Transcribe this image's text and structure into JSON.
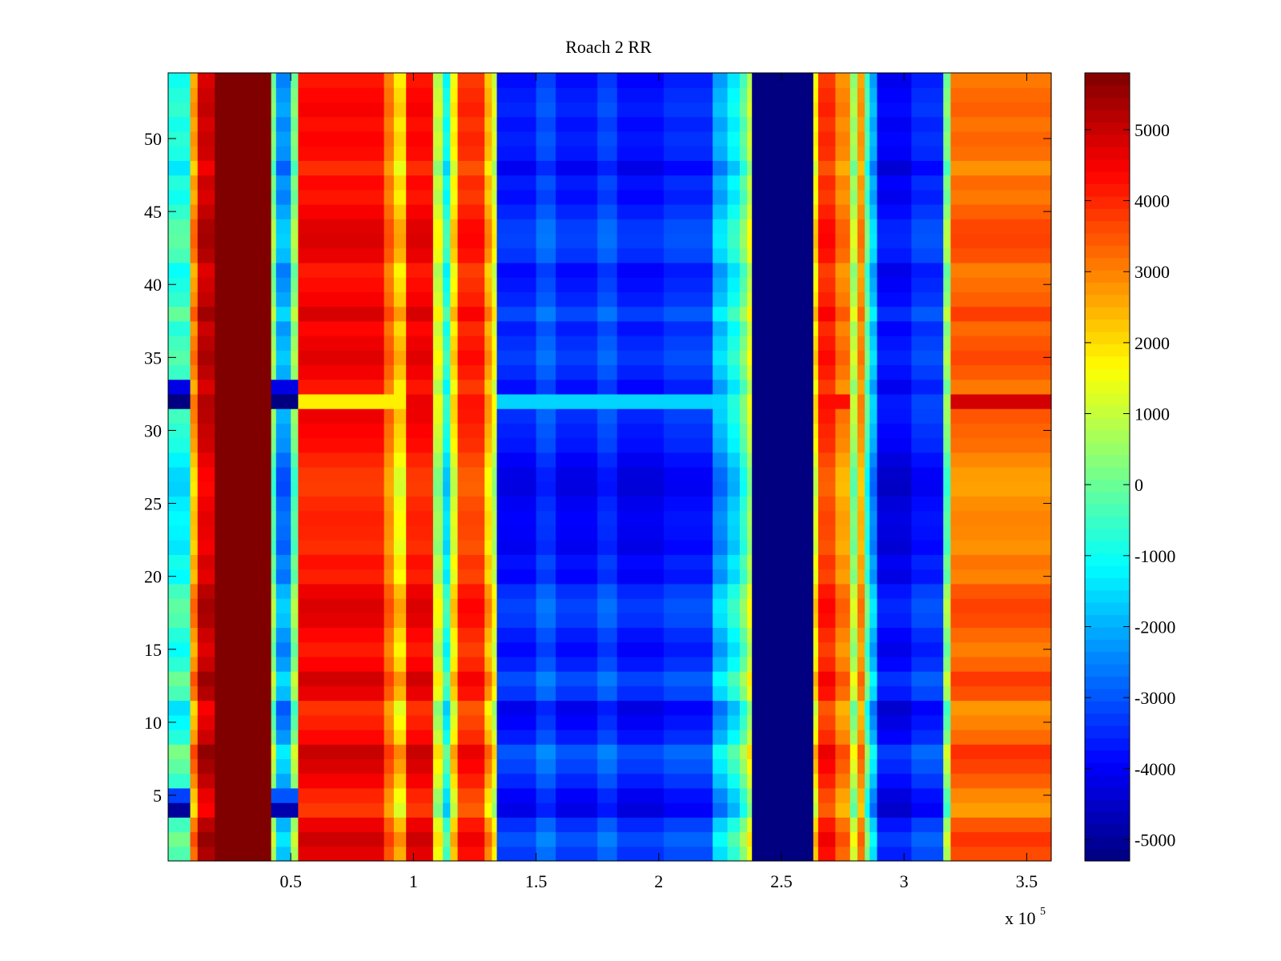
{
  "chart_data": {
    "type": "heatmap",
    "title": "Roach 2 RR",
    "xlabel": "",
    "ylabel": "",
    "x_multiplier_label": {
      "prefix": "x 10",
      "exponent": "5"
    },
    "xlim": [
      0,
      3.6
    ],
    "ylim": [
      0.5,
      54.5
    ],
    "x_ticks": [
      0.5,
      1,
      1.5,
      2,
      2.5,
      3,
      3.5
    ],
    "x_tick_labels": [
      "0.5",
      "1",
      "1.5",
      "2",
      "2.5",
      "3",
      "3.5"
    ],
    "y_ticks": [
      5,
      10,
      15,
      20,
      25,
      30,
      35,
      40,
      45,
      50
    ],
    "y_tick_labels": [
      "5",
      "10",
      "15",
      "20",
      "25",
      "30",
      "35",
      "40",
      "45",
      "50"
    ],
    "n_rows": 54,
    "color_range": [
      -5300,
      5800
    ],
    "colormap": "jet",
    "colorbar": {
      "ticks": [
        5000,
        4000,
        3000,
        2000,
        1000,
        0,
        -1000,
        -2000,
        -3000,
        -4000,
        -5000
      ],
      "tick_labels": [
        "5000",
        "4000",
        "3000",
        "2000",
        "1000",
        "0",
        "-1000",
        "-2000",
        "-3000",
        "-4000",
        "-5000"
      ]
    },
    "column_bands": [
      {
        "x_start": 0.0,
        "x_end": 0.09,
        "value": -1000
      },
      {
        "x_start": 0.09,
        "x_end": 0.12,
        "value": 2500
      },
      {
        "x_start": 0.12,
        "x_end": 0.19,
        "value": 4800
      },
      {
        "x_start": 0.19,
        "x_end": 0.42,
        "value": 5800
      },
      {
        "x_start": 0.42,
        "x_end": 0.44,
        "value": 0
      },
      {
        "x_start": 0.44,
        "x_end": 0.5,
        "value": -2500
      },
      {
        "x_start": 0.5,
        "x_end": 0.53,
        "value": 0
      },
      {
        "x_start": 0.53,
        "x_end": 0.88,
        "value": 4200
      },
      {
        "x_start": 0.88,
        "x_end": 0.92,
        "value": 3000
      },
      {
        "x_start": 0.92,
        "x_end": 0.97,
        "value": 1800
      },
      {
        "x_start": 0.97,
        "x_end": 1.08,
        "value": 4200
      },
      {
        "x_start": 1.08,
        "x_end": 1.12,
        "value": 800
      },
      {
        "x_start": 1.12,
        "x_end": 1.15,
        "value": -1200
      },
      {
        "x_start": 1.15,
        "x_end": 1.18,
        "value": 1500
      },
      {
        "x_start": 1.18,
        "x_end": 1.29,
        "value": 3800
      },
      {
        "x_start": 1.29,
        "x_end": 1.32,
        "value": 2200
      },
      {
        "x_start": 1.32,
        "x_end": 1.34,
        "value": 1000
      },
      {
        "x_start": 1.34,
        "x_end": 1.5,
        "value": -3800
      },
      {
        "x_start": 1.5,
        "x_end": 1.58,
        "value": -3200
      },
      {
        "x_start": 1.58,
        "x_end": 1.75,
        "value": -3800
      },
      {
        "x_start": 1.75,
        "x_end": 1.83,
        "value": -3300
      },
      {
        "x_start": 1.83,
        "x_end": 2.02,
        "value": -3900
      },
      {
        "x_start": 2.02,
        "x_end": 2.22,
        "value": -3600
      },
      {
        "x_start": 2.22,
        "x_end": 2.28,
        "value": -2200
      },
      {
        "x_start": 2.28,
        "x_end": 2.33,
        "value": -1400
      },
      {
        "x_start": 2.33,
        "x_end": 2.36,
        "value": -400
      },
      {
        "x_start": 2.36,
        "x_end": 2.38,
        "value": 800
      },
      {
        "x_start": 2.38,
        "x_end": 2.63,
        "value": -5300
      },
      {
        "x_start": 2.63,
        "x_end": 2.65,
        "value": 1500
      },
      {
        "x_start": 2.65,
        "x_end": 2.72,
        "value": 3800
      },
      {
        "x_start": 2.72,
        "x_end": 2.78,
        "value": 2800
      },
      {
        "x_start": 2.78,
        "x_end": 2.81,
        "value": 400
      },
      {
        "x_start": 2.81,
        "x_end": 2.84,
        "value": 2600
      },
      {
        "x_start": 2.84,
        "x_end": 2.86,
        "value": -600
      },
      {
        "x_start": 2.86,
        "x_end": 2.89,
        "value": -2200
      },
      {
        "x_start": 2.89,
        "x_end": 3.03,
        "value": -4100
      },
      {
        "x_start": 3.03,
        "x_end": 3.16,
        "value": -3600
      },
      {
        "x_start": 3.16,
        "x_end": 3.19,
        "value": 0
      },
      {
        "x_start": 3.19,
        "x_end": 3.6,
        "value": 3100
      }
    ],
    "row_offsets": [
      900,
      1400,
      700,
      -700,
      -300,
      500,
      1100,
      1500,
      300,
      -200,
      -600,
      800,
      1300,
      400,
      -100,
      300,
      900,
      1100,
      700,
      -200,
      100,
      -500,
      -300,
      -200,
      -400,
      -800,
      -700,
      -300,
      200,
      400,
      700,
      800,
      0,
      600,
      1000,
      700,
      300,
      1200,
      500,
      200,
      -100,
      800,
      1100,
      1000,
      500,
      0,
      300,
      -500,
      200,
      400,
      100,
      500,
      300,
      0
    ],
    "row_overrides": [
      {
        "row": 32,
        "x_start": 0.0,
        "x_end": 0.09,
        "value": -5300
      },
      {
        "row": 33,
        "x_start": 0.0,
        "x_end": 0.09,
        "value": -4200
      },
      {
        "row": 32,
        "x_start": 0.42,
        "x_end": 0.53,
        "value": -5300
      },
      {
        "row": 33,
        "x_start": 0.42,
        "x_end": 0.53,
        "value": -4200
      },
      {
        "row": 4,
        "x_start": 0.0,
        "x_end": 0.09,
        "value": -5000
      },
      {
        "row": 5,
        "x_start": 0.0,
        "x_end": 0.09,
        "value": -3200
      },
      {
        "row": 4,
        "x_start": 0.42,
        "x_end": 0.53,
        "value": -4800
      },
      {
        "row": 5,
        "x_start": 0.42,
        "x_end": 0.53,
        "value": -3000
      },
      {
        "row": 32,
        "x_start": 0.53,
        "x_end": 0.97,
        "value": 1800
      },
      {
        "row": 32,
        "x_start": 2.65,
        "x_end": 2.78,
        "value": 4300
      },
      {
        "row": 32,
        "x_start": 3.19,
        "x_end": 3.6,
        "value": 4900
      },
      {
        "row": 32,
        "x_start": 1.34,
        "x_end": 2.22,
        "value": -1600
      }
    ]
  }
}
